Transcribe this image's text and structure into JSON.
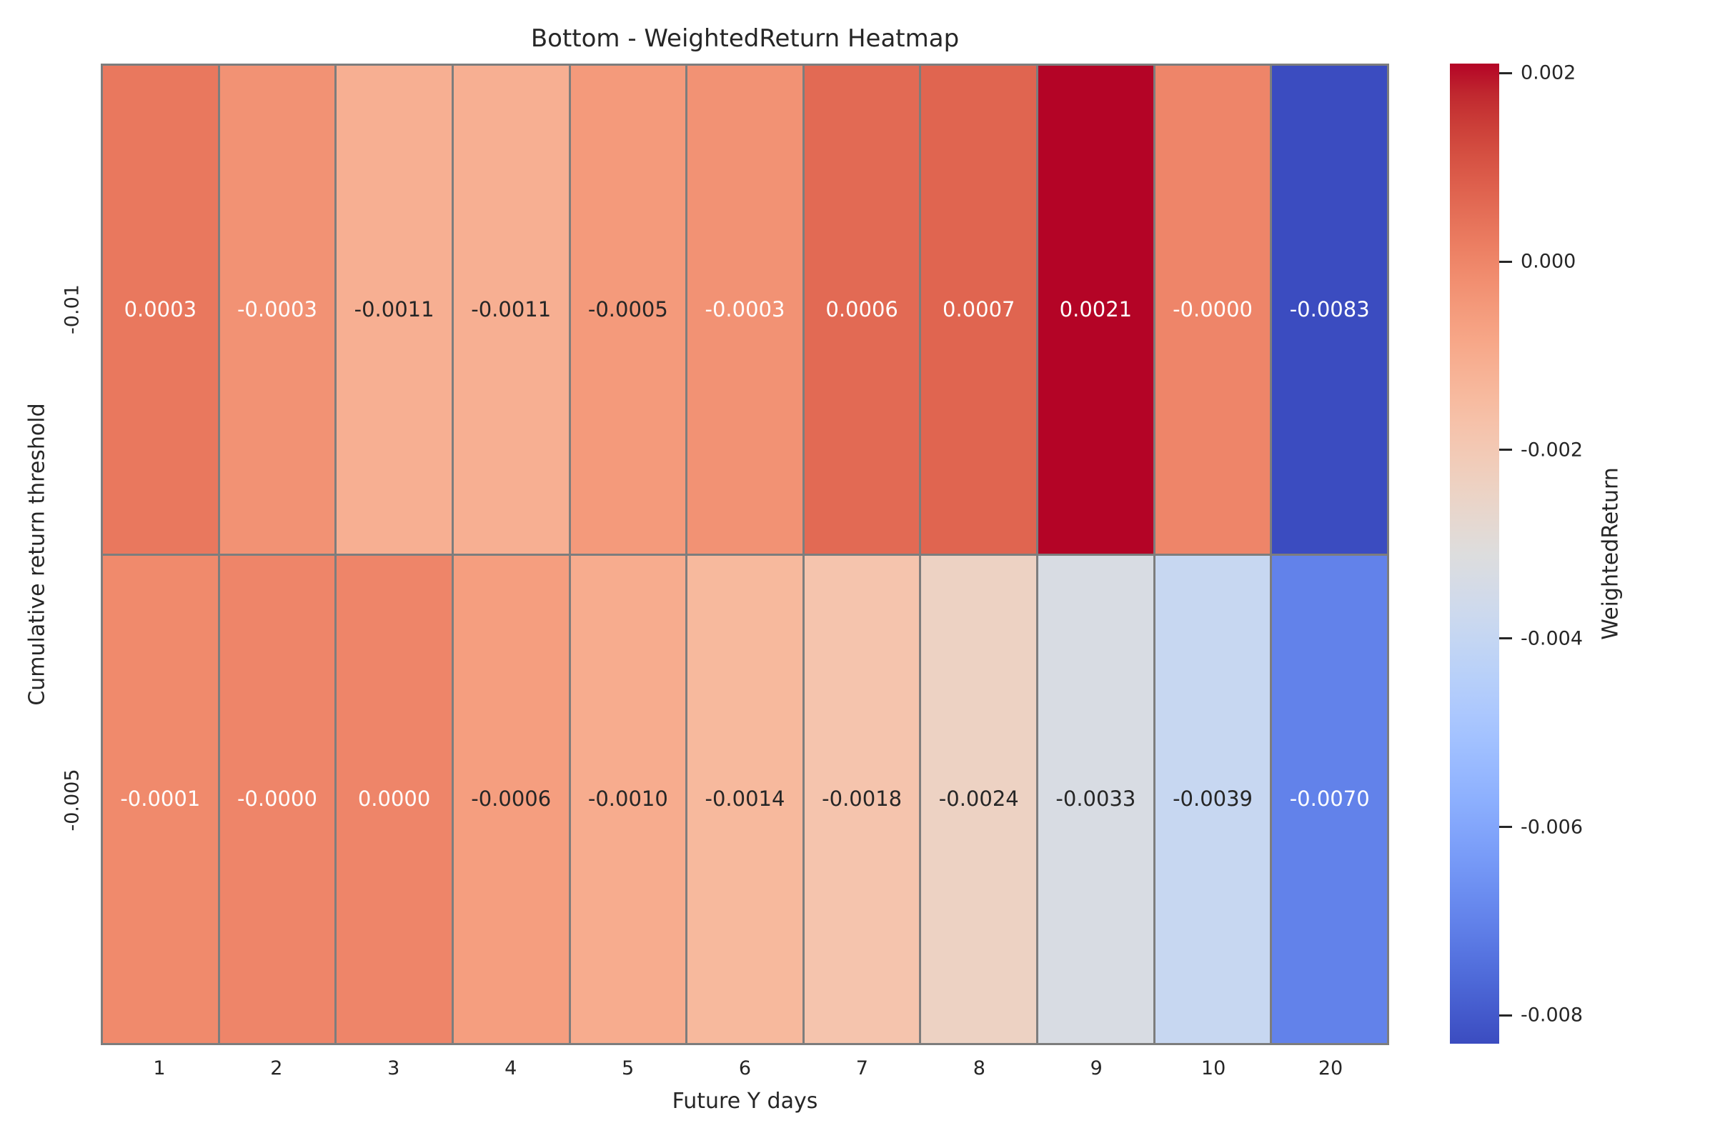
{
  "title": "Bottom - WeightedReturn Heatmap",
  "chart_data": {
    "type": "heatmap",
    "title": "Bottom - WeightedReturn Heatmap",
    "xlabel": "Future Y days",
    "ylabel": "Cumulative return threshold",
    "x_categories": [
      "1",
      "2",
      "3",
      "4",
      "5",
      "6",
      "7",
      "8",
      "9",
      "10",
      "20"
    ],
    "y_categories": [
      "-0.01",
      "-0.005"
    ],
    "series": [
      {
        "name": "-0.01",
        "values": [
          0.0003,
          -0.0003,
          -0.0011,
          -0.0011,
          -0.0005,
          -0.0003,
          0.0006,
          0.0007,
          0.0021,
          -0.0,
          -0.0083
        ],
        "labels": [
          "0.0003",
          "-0.0003",
          "-0.0011",
          "-0.0011",
          "-0.0005",
          "-0.0003",
          "0.0006",
          "0.0007",
          "0.0021",
          "-0.0000",
          "-0.0083"
        ]
      },
      {
        "name": "-0.005",
        "values": [
          -0.0001,
          -0.0,
          0.0,
          -0.0006,
          -0.001,
          -0.0014,
          -0.0018,
          -0.0024,
          -0.0033,
          -0.0039,
          -0.007
        ],
        "labels": [
          "-0.0001",
          "-0.0000",
          "0.0000",
          "-0.0006",
          "-0.0010",
          "-0.0014",
          "-0.0018",
          "-0.0024",
          "-0.0033",
          "-0.0039",
          "-0.0070"
        ]
      }
    ],
    "colormap": "coolwarm",
    "vmin": -0.0083,
    "vmax": 0.0021,
    "colorbar": {
      "label": "WeightedReturn",
      "ticks": [
        0.002,
        0.0,
        -0.002,
        -0.004,
        -0.006,
        -0.008
      ],
      "tick_labels": [
        "0.002",
        "0.000",
        "-0.002",
        "-0.004",
        "-0.006",
        "-0.008"
      ]
    },
    "grid_on": false,
    "legend_position": "none",
    "colors": {
      "grid_line": "#7d7d7d",
      "text": "#262626",
      "annot_dark": "#262626",
      "annot_light": "#ffffff",
      "background": "#ffffff"
    }
  }
}
